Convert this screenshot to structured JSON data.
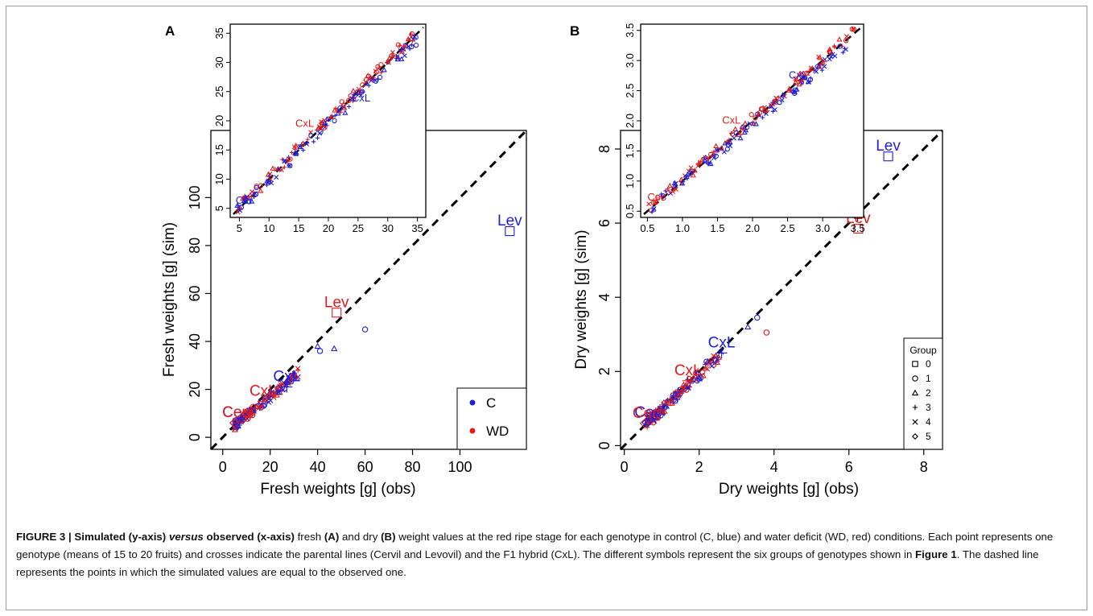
{
  "colors": {
    "C": "#1f1fd6",
    "WD": "#e01a1a",
    "axis": "#000000"
  },
  "panels": [
    {
      "label": "A",
      "xlabel": "Fresh weights [g] (obs)",
      "ylabel": "Fresh weights [g] (sim)",
      "legend_c": "C",
      "legend_wd": "WD",
      "xticks": [
        "0",
        "20",
        "40",
        "60",
        "80",
        "100"
      ],
      "yticks": [
        "0",
        "20",
        "40",
        "60",
        "80",
        "100"
      ],
      "inset_xticks": [
        "5",
        "10",
        "15",
        "20",
        "25",
        "30",
        "35"
      ],
      "inset_yticks": [
        "5",
        "10",
        "15",
        "20",
        "25",
        "30",
        "35"
      ],
      "labels": {
        "lev": "Lev",
        "cxl": "CxL",
        "cer": "Cer"
      }
    },
    {
      "label": "B",
      "xlabel": "Dry weights [g] (obs)",
      "ylabel": "Dry weights [g] (sim)",
      "legend_title": "Group",
      "groups": [
        "0",
        "1",
        "2",
        "3",
        "4",
        "5"
      ],
      "xticks": [
        "0",
        "2",
        "4",
        "6",
        "8"
      ],
      "yticks": [
        "0",
        "2",
        "4",
        "6",
        "8"
      ],
      "inset_xticks": [
        "0.5",
        "1.0",
        "1.5",
        "2.0",
        "2.5",
        "3.0",
        "3.5"
      ],
      "inset_yticks": [
        "0.5",
        "1.0",
        "1.5",
        "2.0",
        "2.5",
        "3.0",
        "3.5"
      ],
      "labels": {
        "lev": "Lev",
        "cxl": "CxL",
        "cer": "Cer"
      }
    }
  ],
  "chart_data": [
    {
      "type": "scatter",
      "panel": "A",
      "xlabel": "Fresh weights [g] (obs)",
      "ylabel": "Fresh weights [g] (sim)",
      "xlim": [
        -5,
        128
      ],
      "ylim": [
        -5,
        128
      ],
      "reference_line": "y = x (dashed)",
      "series": [
        {
          "name": "C",
          "labeled_points": [
            {
              "label": "Lev",
              "x": 121,
              "y": 86
            },
            {
              "label": "CxL",
              "x": 27,
              "y": 21
            },
            {
              "label": "Cer",
              "x": 5,
              "y": 6
            }
          ],
          "outliers": [
            [
              60,
              45
            ],
            [
              47,
              37
            ],
            [
              41,
              36
            ],
            [
              40,
              38
            ]
          ]
        },
        {
          "name": "WD",
          "labeled_points": [
            {
              "label": "Lev",
              "x": 48,
              "y": 52
            },
            {
              "label": "CxL",
              "x": 17,
              "y": 15
            },
            {
              "label": "Cer",
              "x": 5,
              "y": 6
            }
          ]
        }
      ],
      "inset": {
        "xlim": [
          4,
          36
        ],
        "ylim": [
          4,
          36
        ]
      }
    },
    {
      "type": "scatter",
      "panel": "B",
      "xlabel": "Dry weights [g] (obs)",
      "ylabel": "Dry weights [g] (sim)",
      "xlim": [
        -0.1,
        8.5
      ],
      "ylim": [
        -0.1,
        8.5
      ],
      "reference_line": "y = x (dashed)",
      "series": [
        {
          "name": "C",
          "labeled_points": [
            {
              "label": "Lev",
              "x": 7.05,
              "y": 7.8
            },
            {
              "label": "CxL",
              "x": 2.6,
              "y": 2.5
            },
            {
              "label": "Cer",
              "x": 0.6,
              "y": 0.62
            }
          ],
          "outliers": [
            [
              3.55,
              3.45
            ],
            [
              3.3,
              3.2
            ]
          ]
        },
        {
          "name": "WD",
          "labeled_points": [
            {
              "label": "Lev",
              "x": 6.25,
              "y": 5.85
            },
            {
              "label": "CxL",
              "x": 1.7,
              "y": 1.75
            },
            {
              "label": "Cer",
              "x": 0.55,
              "y": 0.6
            }
          ],
          "outliers": [
            [
              3.8,
              3.05
            ]
          ]
        }
      ],
      "inset": {
        "xlim": [
          0.45,
          3.55
        ],
        "ylim": [
          0.45,
          3.55
        ]
      }
    }
  ],
  "caption": {
    "fig_label": "FIGURE 3 | Simulated (y-axis) ",
    "versus": "versus",
    "bold_rest": " observed (x-axis)",
    "t1": " fresh ",
    "a": "(A)",
    "t2": " and dry ",
    "b": "(B)",
    "t3": " weight values at the red ripe stage for each genotype in control (C, blue) and water deficit (WD, red) conditions. Each point represents one genotype (means of 15 to 20 fruits) and crosses indicate the parental lines (Cervil and Levovil) and the F1 hybrid (CxL). The different symbols represent the six groups of genotypes shown in ",
    "fig1": "Figure 1",
    "t4": ". The dashed line represents the points in which the simulated values are equal to the observed one."
  }
}
